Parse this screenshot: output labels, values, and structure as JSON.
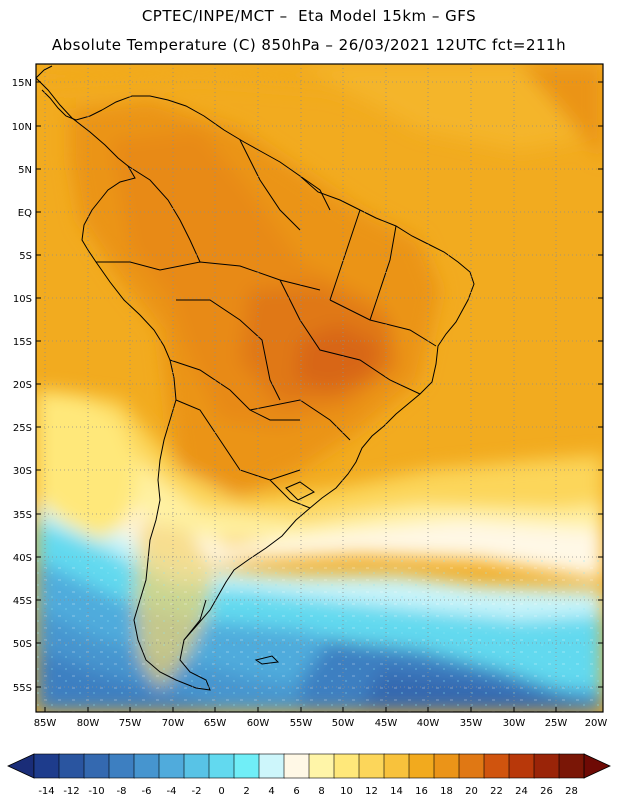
{
  "header": {
    "line1": "CPTEC/INPE/MCT –  Eta Model 15km – GFS",
    "line2": "Absolute Temperature (C) 850hPa – 26/03/2021 12UTC fct=211h"
  },
  "map": {
    "lat_labels": [
      "15N",
      "10N",
      "5N",
      "EQ",
      "5S",
      "10S",
      "15S",
      "20S",
      "25S",
      "30S",
      "35S",
      "40S",
      "45S",
      "50S",
      "55S"
    ],
    "lon_labels": [
      "85W",
      "80W",
      "75W",
      "70W",
      "65W",
      "60W",
      "55W",
      "50W",
      "45W",
      "40W",
      "35W",
      "30W",
      "25W",
      "20W"
    ],
    "extent": {
      "lon_min": -86,
      "lon_max": -19.5,
      "lat_min": -57.8,
      "lat_max": 16.5
    }
  },
  "colorbar": {
    "labels": [
      "-14",
      "-12",
      "-10",
      "-8",
      "-6",
      "-4",
      "-2",
      "0",
      "2",
      "4",
      "6",
      "8",
      "10",
      "12",
      "14",
      "16",
      "18",
      "20",
      "22",
      "24",
      "26",
      "28"
    ],
    "colors": [
      "#1e3c8c",
      "#2a55a0",
      "#3469b0",
      "#3d7fc1",
      "#4695cf",
      "#50abdc",
      "#58c3e6",
      "#62d9ef",
      "#70eef7",
      "#cdf6fb",
      "#fff8e6",
      "#fff5a8",
      "#ffe87a",
      "#fcd65a",
      "#f8c23c",
      "#f2aa1e",
      "#eb9418",
      "#e07814",
      "#d0540e",
      "#b8380a",
      "#9a2408",
      "#7a1606"
    ],
    "under_color": "#1a2d78",
    "over_color": "#6e0a05"
  }
}
